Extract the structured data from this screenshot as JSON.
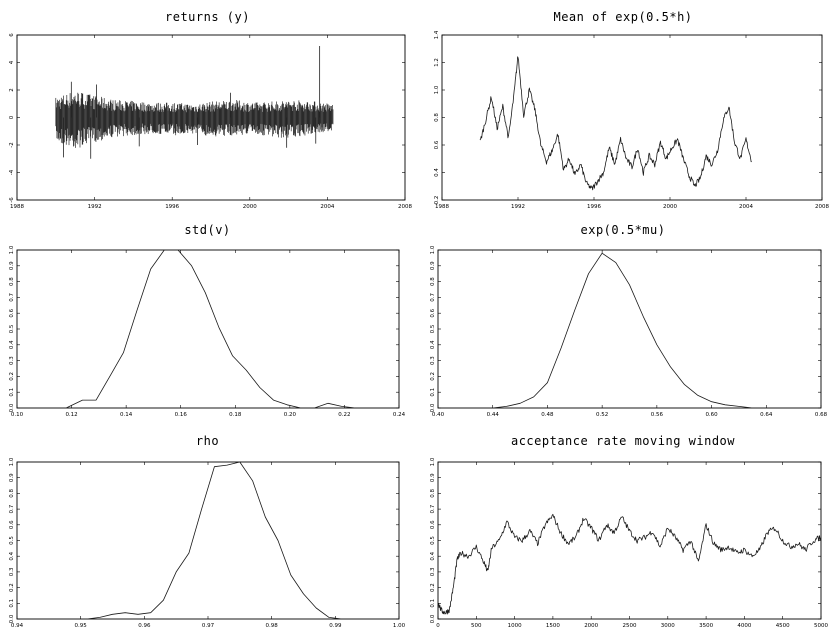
{
  "chart_data": [
    {
      "type": "line",
      "title": "returns (y)",
      "xlim": [
        1988,
        2008
      ],
      "ylim": [
        -6,
        6
      ],
      "xticks": [
        "1988",
        "1992",
        "1996",
        "2000",
        "2004",
        "2008"
      ],
      "yticks": [
        "-6",
        "-4",
        "-2",
        "0",
        "2",
        "4",
        "6"
      ],
      "x_range": [
        1990,
        2004.3
      ],
      "band_upper": [
        1.5,
        2.0,
        1.6,
        1.3,
        1.2,
        1.1,
        1.1,
        1.0,
        1.2,
        1.3,
        1.1,
        1.2,
        1.3,
        1.2,
        1.0
      ],
      "band_lower": [
        -1.8,
        -2.3,
        -1.8,
        -1.4,
        -1.3,
        -1.2,
        -1.3,
        -1.2,
        -1.4,
        -1.3,
        -1.2,
        -1.5,
        -1.5,
        -1.2,
        -1.0
      ],
      "spikes": [
        {
          "x": 1990.4,
          "y": -2.9
        },
        {
          "x": 1990.8,
          "y": 2.6
        },
        {
          "x": 1991.8,
          "y": -3.0
        },
        {
          "x": 1992.1,
          "y": 2.4
        },
        {
          "x": 1994.3,
          "y": -2.1
        },
        {
          "x": 1997.3,
          "y": -2.0
        },
        {
          "x": 1999.0,
          "y": 1.8
        },
        {
          "x": 2001.9,
          "y": -2.2
        },
        {
          "x": 2003.6,
          "y": 5.2
        },
        {
          "x": 2003.4,
          "y": -1.9
        }
      ]
    },
    {
      "type": "line",
      "title": "Mean of exp(0.5*h)",
      "xlim": [
        1988,
        2008
      ],
      "ylim": [
        0.2,
        1.4
      ],
      "xticks": [
        "1988",
        "1992",
        "1996",
        "2000",
        "2004",
        "2008"
      ],
      "yticks": [
        "0.2",
        "0.4",
        "0.6",
        "0.8",
        "1.0",
        "1.2",
        "1.4"
      ],
      "x": [
        1990.0,
        1990.3,
        1990.6,
        1990.9,
        1991.2,
        1991.5,
        1991.8,
        1992.0,
        1992.3,
        1992.6,
        1992.9,
        1993.2,
        1993.5,
        1993.8,
        1994.1,
        1994.4,
        1994.7,
        1995.0,
        1995.3,
        1995.6,
        1995.9,
        1996.2,
        1996.5,
        1996.8,
        1997.1,
        1997.4,
        1997.7,
        1998.0,
        1998.3,
        1998.6,
        1998.9,
        1999.2,
        1999.5,
        1999.8,
        2000.1,
        2000.4,
        2000.7,
        2001.0,
        2001.3,
        2001.6,
        2001.9,
        2002.2,
        2002.5,
        2002.8,
        2003.1,
        2003.4,
        2003.7,
        2004.0,
        2004.3
      ],
      "y": [
        0.62,
        0.78,
        0.95,
        0.72,
        0.88,
        0.65,
        0.98,
        1.25,
        0.82,
        1.0,
        0.85,
        0.6,
        0.48,
        0.56,
        0.68,
        0.42,
        0.5,
        0.38,
        0.46,
        0.32,
        0.28,
        0.34,
        0.4,
        0.58,
        0.46,
        0.64,
        0.5,
        0.44,
        0.58,
        0.4,
        0.52,
        0.46,
        0.62,
        0.5,
        0.58,
        0.64,
        0.5,
        0.38,
        0.3,
        0.36,
        0.52,
        0.46,
        0.56,
        0.78,
        0.88,
        0.62,
        0.5,
        0.64,
        0.48
      ]
    },
    {
      "type": "line",
      "title": "std(v)",
      "xlim": [
        0.1,
        0.24
      ],
      "ylim": [
        0,
        1.0
      ],
      "xticks": [
        "0.10",
        "0.12",
        "0.14",
        "0.16",
        "0.18",
        "0.20",
        "0.22",
        "0.24"
      ],
      "yticks": [
        "0.0",
        "0.1",
        "0.2",
        "0.3",
        "0.4",
        "0.5",
        "0.6",
        "0.7",
        "0.8",
        "0.9",
        "1.0"
      ],
      "x": [
        0.118,
        0.124,
        0.129,
        0.134,
        0.139,
        0.144,
        0.149,
        0.154,
        0.159,
        0.164,
        0.169,
        0.174,
        0.179,
        0.184,
        0.189,
        0.194,
        0.199,
        0.204,
        0.209,
        0.214,
        0.219,
        0.224
      ],
      "y": [
        0.0,
        0.05,
        0.05,
        0.2,
        0.35,
        0.62,
        0.88,
        1.0,
        1.0,
        0.9,
        0.73,
        0.51,
        0.33,
        0.24,
        0.13,
        0.05,
        0.02,
        0.0,
        0.0,
        0.03,
        0.01,
        0.0
      ]
    },
    {
      "type": "line",
      "title": "exp(0.5*mu)",
      "xlim": [
        0.4,
        0.68
      ],
      "ylim": [
        0,
        1.0
      ],
      "xticks": [
        "0.40",
        "0.44",
        "0.48",
        "0.52",
        "0.56",
        "0.60",
        "0.64",
        "0.68"
      ],
      "yticks": [
        "0.0",
        "0.1",
        "0.2",
        "0.3",
        "0.4",
        "0.5",
        "0.6",
        "0.7",
        "0.8",
        "0.9",
        "1.0"
      ],
      "x": [
        0.44,
        0.45,
        0.46,
        0.47,
        0.48,
        0.49,
        0.5,
        0.51,
        0.52,
        0.53,
        0.54,
        0.55,
        0.56,
        0.57,
        0.58,
        0.59,
        0.6,
        0.61,
        0.62,
        0.63,
        0.64
      ],
      "y": [
        0.0,
        0.01,
        0.03,
        0.07,
        0.16,
        0.38,
        0.62,
        0.85,
        0.98,
        0.92,
        0.78,
        0.58,
        0.4,
        0.26,
        0.15,
        0.08,
        0.04,
        0.02,
        0.01,
        0.0,
        0.0
      ]
    },
    {
      "type": "line",
      "title": "rho",
      "xlim": [
        0.94,
        1.0
      ],
      "ylim": [
        0,
        1.0
      ],
      "xticks": [
        "0.94",
        "0.95",
        "0.96",
        "0.97",
        "0.98",
        "0.99",
        "1.00"
      ],
      "yticks": [
        "0.0",
        "0.1",
        "0.2",
        "0.3",
        "0.4",
        "0.5",
        "0.6",
        "0.7",
        "0.8",
        "0.9",
        "1.0"
      ],
      "x": [
        0.951,
        0.953,
        0.955,
        0.957,
        0.959,
        0.961,
        0.963,
        0.965,
        0.967,
        0.969,
        0.971,
        0.973,
        0.975,
        0.977,
        0.979,
        0.981,
        0.983,
        0.985,
        0.987,
        0.989,
        0.991,
        0.993
      ],
      "y": [
        0.0,
        0.01,
        0.03,
        0.04,
        0.03,
        0.04,
        0.12,
        0.3,
        0.42,
        0.7,
        0.97,
        0.98,
        1.0,
        0.88,
        0.65,
        0.5,
        0.28,
        0.16,
        0.07,
        0.01,
        0.0,
        0.0
      ]
    },
    {
      "type": "line",
      "title": "acceptance rate moving window",
      "xlim": [
        0,
        5000
      ],
      "ylim": [
        0,
        1.0
      ],
      "xticks": [
        "0",
        "500",
        "1000",
        "1500",
        "2000",
        "2500",
        "3000",
        "3500",
        "4000",
        "4500",
        "5000"
      ],
      "yticks": [
        "0.0",
        "0.1",
        "0.2",
        "0.3",
        "0.4",
        "0.5",
        "0.6",
        "0.7",
        "0.8",
        "0.9",
        "1.0"
      ],
      "x": [
        0,
        50,
        100,
        150,
        200,
        250,
        300,
        400,
        500,
        600,
        650,
        700,
        800,
        900,
        1000,
        1100,
        1200,
        1300,
        1400,
        1500,
        1600,
        1700,
        1800,
        1900,
        2000,
        2100,
        2200,
        2300,
        2400,
        2500,
        2600,
        2700,
        2800,
        2900,
        3000,
        3100,
        3200,
        3300,
        3400,
        3500,
        3600,
        3700,
        3800,
        3900,
        4000,
        4100,
        4200,
        4300,
        4400,
        4500,
        4600,
        4700,
        4800,
        4900,
        5000
      ],
      "y": [
        0.1,
        0.05,
        0.04,
        0.06,
        0.2,
        0.38,
        0.42,
        0.4,
        0.46,
        0.36,
        0.3,
        0.45,
        0.5,
        0.62,
        0.52,
        0.5,
        0.56,
        0.48,
        0.6,
        0.66,
        0.55,
        0.48,
        0.52,
        0.64,
        0.58,
        0.5,
        0.6,
        0.55,
        0.65,
        0.56,
        0.5,
        0.52,
        0.56,
        0.46,
        0.58,
        0.52,
        0.44,
        0.5,
        0.36,
        0.6,
        0.48,
        0.44,
        0.46,
        0.42,
        0.44,
        0.4,
        0.44,
        0.55,
        0.58,
        0.5,
        0.46,
        0.48,
        0.44,
        0.5,
        0.52
      ]
    }
  ]
}
